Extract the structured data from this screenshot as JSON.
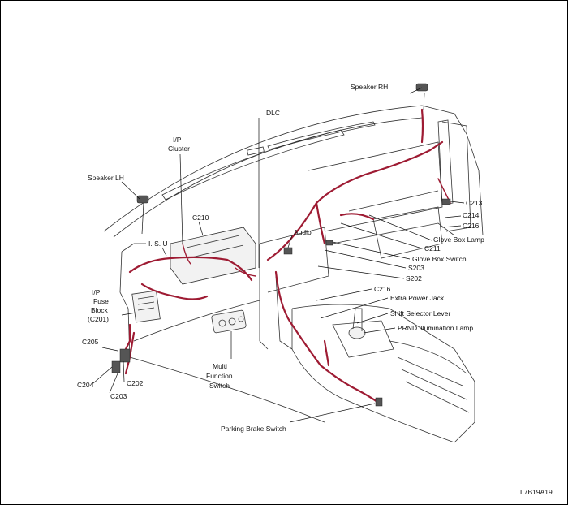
{
  "figure_code": "L7B19A19",
  "colors": {
    "harness": "#9e1b33",
    "line": "#333333",
    "background": "#ffffff"
  },
  "labels": {
    "speaker_rh": "Speaker RH",
    "dlc": "DLC",
    "ip_cluster_1": "I/P",
    "ip_cluster_2": "Cluster",
    "speaker_lh": "Speaker LH",
    "c210": "C210",
    "isu": "I. S. U",
    "audio": "Audio",
    "c213": "C213",
    "c214": "C214",
    "c216_top": "C216",
    "glove_box_lamp": "Glove Box Lamp",
    "c211": "C211",
    "glove_box_switch": "Glove Box Switch",
    "s203": "S203",
    "s202": "S202",
    "c216_mid": "C216",
    "extra_power_jack": "Extra Power Jack",
    "shift_selector_lever": "Shift Selector Lever",
    "prnd_illumination_lamp": "PRND Illumination Lamp",
    "ip_fuse_1": "I/P",
    "ip_fuse_2": "Fuse",
    "ip_fuse_3": "Block",
    "ip_fuse_4": "(C201)",
    "c205": "C205",
    "c204": "C204",
    "c202": "C202",
    "c203": "C203",
    "mfs_1": "Multi",
    "mfs_2": "Function",
    "mfs_3": "Switch",
    "parking_brake_switch": "Parking Brake Switch"
  }
}
